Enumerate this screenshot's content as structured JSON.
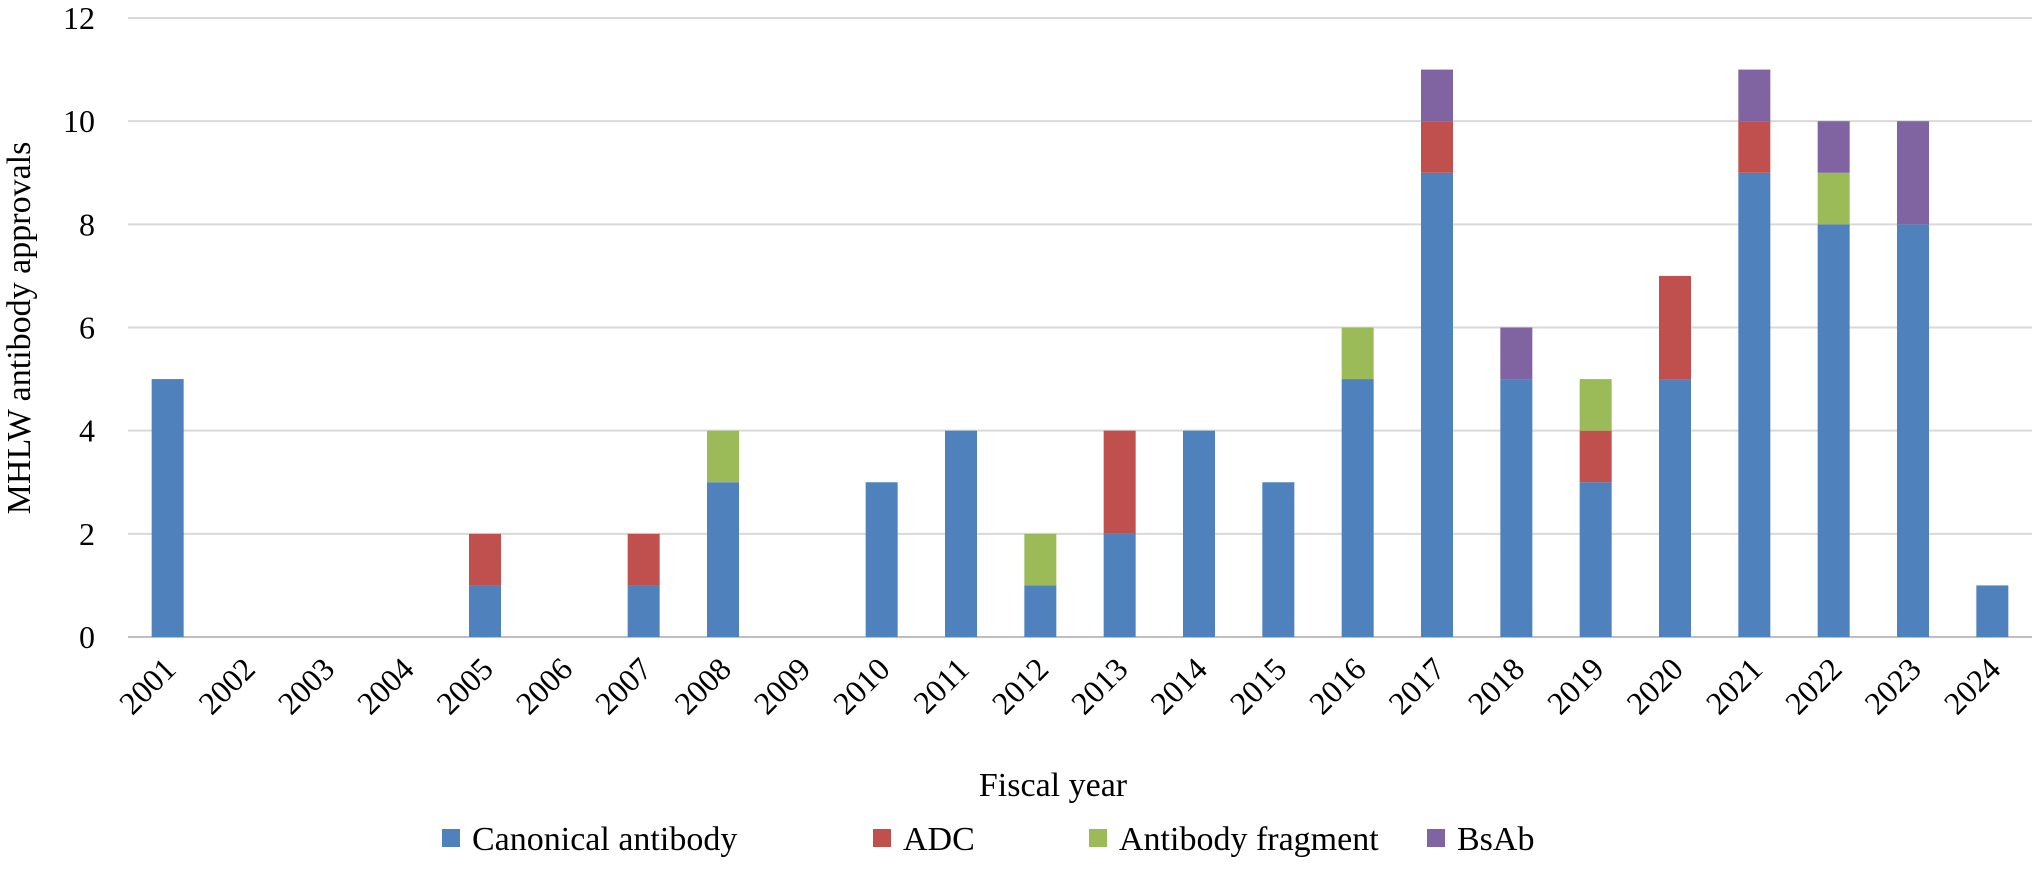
{
  "chart_data": {
    "type": "bar",
    "stacked": true,
    "title": "",
    "xlabel": "Fiscal year",
    "ylabel": "MHLW antibody approvals",
    "ylim": [
      0,
      12
    ],
    "yticks": [
      "0",
      "2",
      "4",
      "6",
      "8",
      "10",
      "12"
    ],
    "grid": "horizontal",
    "legend_position": "bottom",
    "categories": [
      "2001",
      "2002",
      "2003",
      "2004",
      "2005",
      "2006",
      "2007",
      "2008",
      "2009",
      "2010",
      "2011",
      "2012",
      "2013",
      "2014",
      "2015",
      "2016",
      "2017",
      "2018",
      "2019",
      "2020",
      "2021",
      "2022",
      "2023",
      "2024"
    ],
    "series": [
      {
        "name": "Canonical antibody",
        "color": "#4F81BD",
        "values": [
          5,
          0,
          0,
          0,
          1,
          0,
          1,
          3,
          0,
          3,
          4,
          1,
          2,
          4,
          3,
          5,
          9,
          5,
          3,
          5,
          9,
          8,
          8,
          1
        ]
      },
      {
        "name": "ADC",
        "color": "#C0504D",
        "values": [
          0,
          0,
          0,
          0,
          1,
          0,
          1,
          0,
          0,
          0,
          0,
          0,
          2,
          0,
          0,
          0,
          1,
          0,
          1,
          2,
          1,
          0,
          0,
          0
        ]
      },
      {
        "name": "Antibody fragment",
        "color": "#9BBB59",
        "values": [
          0,
          0,
          0,
          0,
          0,
          0,
          0,
          1,
          0,
          0,
          0,
          1,
          0,
          0,
          0,
          1,
          0,
          0,
          1,
          0,
          0,
          1,
          0,
          0
        ]
      },
      {
        "name": "BsAb",
        "color": "#8064A2",
        "values": [
          0,
          0,
          0,
          0,
          0,
          0,
          0,
          0,
          0,
          0,
          0,
          0,
          0,
          0,
          0,
          0,
          1,
          1,
          0,
          0,
          1,
          1,
          2,
          0
        ]
      }
    ]
  }
}
